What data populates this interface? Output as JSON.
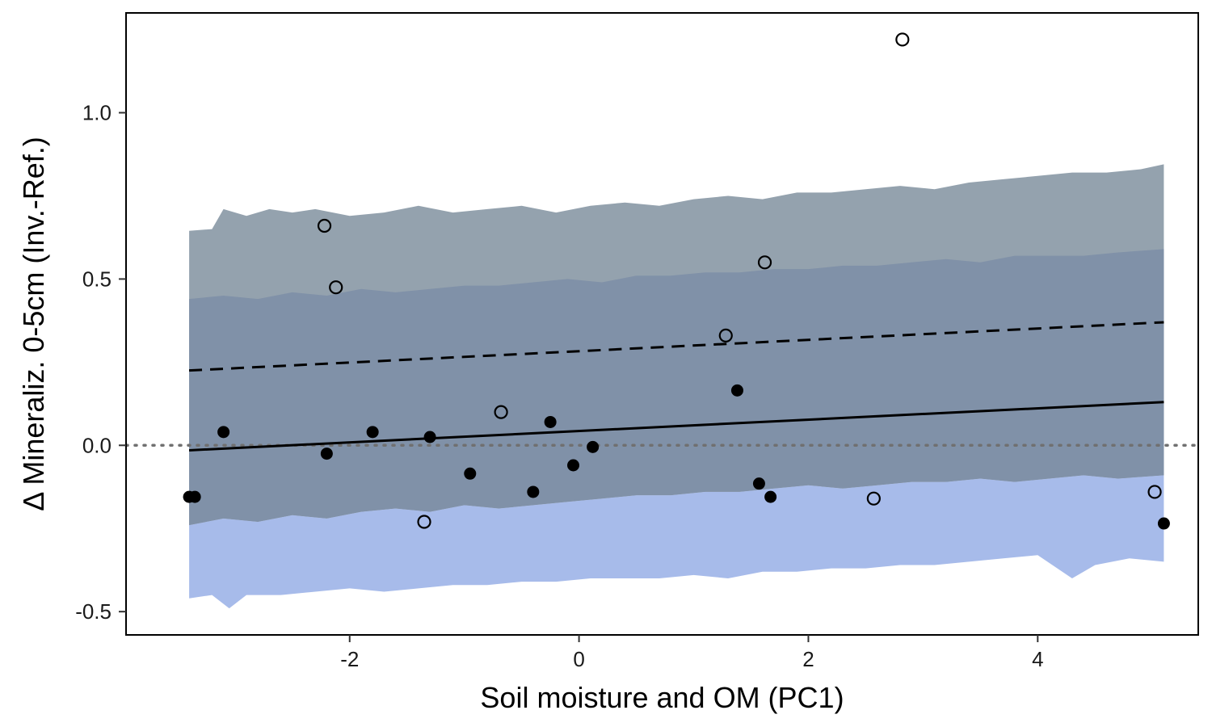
{
  "chart_data": {
    "type": "scatter",
    "title": "",
    "xlabel": "Soil moisture and OM (PC1)",
    "ylabel": "Δ Mineraliz. 0-5cm (Inv.-Ref.)",
    "xlim": [
      -3.95,
      5.4
    ],
    "ylim": [
      -0.57,
      1.3
    ],
    "x_ticks": [
      -2,
      0,
      2,
      4
    ],
    "x_tick_labels": [
      "-2",
      "0",
      "2",
      "4"
    ],
    "y_ticks": [
      -0.5,
      0.0,
      0.5,
      1.0
    ],
    "y_tick_labels": [
      "-0.5",
      "0.0",
      "0.5",
      "1.0"
    ],
    "grid": false,
    "legend": "none",
    "colors": {
      "band_outer": "#94a2ae",
      "band_blue": "#a7bbea",
      "band_inner": "#8091a8",
      "points": "#000000",
      "zero_line": "#707070"
    },
    "bands": {
      "outer_upper": [
        [
          -3.4,
          0.645
        ],
        [
          -3.2,
          0.65
        ],
        [
          -3.1,
          0.71
        ],
        [
          -2.9,
          0.69
        ],
        [
          -2.7,
          0.71
        ],
        [
          -2.5,
          0.7
        ],
        [
          -2.3,
          0.71
        ],
        [
          -2.0,
          0.69
        ],
        [
          -1.7,
          0.7
        ],
        [
          -1.4,
          0.72
        ],
        [
          -1.1,
          0.7
        ],
        [
          -0.8,
          0.71
        ],
        [
          -0.5,
          0.72
        ],
        [
          -0.2,
          0.7
        ],
        [
          0.1,
          0.72
        ],
        [
          0.4,
          0.73
        ],
        [
          0.7,
          0.72
        ],
        [
          1.0,
          0.74
        ],
        [
          1.3,
          0.75
        ],
        [
          1.6,
          0.74
        ],
        [
          1.9,
          0.76
        ],
        [
          2.2,
          0.76
        ],
        [
          2.5,
          0.77
        ],
        [
          2.8,
          0.78
        ],
        [
          3.1,
          0.77
        ],
        [
          3.4,
          0.79
        ],
        [
          3.7,
          0.8
        ],
        [
          4.0,
          0.81
        ],
        [
          4.3,
          0.82
        ],
        [
          4.6,
          0.82
        ],
        [
          4.9,
          0.83
        ],
        [
          5.1,
          0.845
        ]
      ],
      "inner_upper": [
        [
          -3.4,
          0.44
        ],
        [
          -3.1,
          0.45
        ],
        [
          -2.8,
          0.44
        ],
        [
          -2.5,
          0.46
        ],
        [
          -2.2,
          0.45
        ],
        [
          -1.9,
          0.47
        ],
        [
          -1.6,
          0.46
        ],
        [
          -1.3,
          0.47
        ],
        [
          -1.0,
          0.48
        ],
        [
          -0.7,
          0.48
        ],
        [
          -0.4,
          0.49
        ],
        [
          -0.1,
          0.5
        ],
        [
          0.2,
          0.49
        ],
        [
          0.5,
          0.51
        ],
        [
          0.8,
          0.51
        ],
        [
          1.1,
          0.52
        ],
        [
          1.4,
          0.52
        ],
        [
          1.7,
          0.53
        ],
        [
          2.0,
          0.53
        ],
        [
          2.3,
          0.54
        ],
        [
          2.6,
          0.54
        ],
        [
          2.9,
          0.55
        ],
        [
          3.2,
          0.56
        ],
        [
          3.5,
          0.55
        ],
        [
          3.8,
          0.57
        ],
        [
          4.1,
          0.57
        ],
        [
          4.4,
          0.57
        ],
        [
          4.7,
          0.58
        ],
        [
          5.1,
          0.59
        ]
      ],
      "inner_lower": [
        [
          -3.4,
          -0.24
        ],
        [
          -3.1,
          -0.22
        ],
        [
          -2.8,
          -0.23
        ],
        [
          -2.5,
          -0.21
        ],
        [
          -2.2,
          -0.22
        ],
        [
          -1.9,
          -0.2
        ],
        [
          -1.6,
          -0.19
        ],
        [
          -1.3,
          -0.2
        ],
        [
          -1.0,
          -0.18
        ],
        [
          -0.7,
          -0.19
        ],
        [
          -0.4,
          -0.18
        ],
        [
          -0.1,
          -0.17
        ],
        [
          0.2,
          -0.16
        ],
        [
          0.5,
          -0.15
        ],
        [
          0.8,
          -0.15
        ],
        [
          1.1,
          -0.14
        ],
        [
          1.4,
          -0.14
        ],
        [
          1.7,
          -0.13
        ],
        [
          2.0,
          -0.12
        ],
        [
          2.3,
          -0.13
        ],
        [
          2.6,
          -0.12
        ],
        [
          2.9,
          -0.11
        ],
        [
          3.2,
          -0.11
        ],
        [
          3.5,
          -0.1
        ],
        [
          3.8,
          -0.11
        ],
        [
          4.1,
          -0.1
        ],
        [
          4.4,
          -0.09
        ],
        [
          4.7,
          -0.1
        ],
        [
          5.1,
          -0.09
        ]
      ],
      "outer_lower": [
        [
          -3.4,
          -0.46
        ],
        [
          -3.2,
          -0.45
        ],
        [
          -3.05,
          -0.49
        ],
        [
          -2.9,
          -0.45
        ],
        [
          -2.6,
          -0.45
        ],
        [
          -2.3,
          -0.44
        ],
        [
          -2.0,
          -0.43
        ],
        [
          -1.7,
          -0.44
        ],
        [
          -1.4,
          -0.43
        ],
        [
          -1.1,
          -0.42
        ],
        [
          -0.8,
          -0.42
        ],
        [
          -0.5,
          -0.41
        ],
        [
          -0.2,
          -0.41
        ],
        [
          0.1,
          -0.4
        ],
        [
          0.4,
          -0.4
        ],
        [
          0.7,
          -0.4
        ],
        [
          1.0,
          -0.39
        ],
        [
          1.3,
          -0.4
        ],
        [
          1.6,
          -0.38
        ],
        [
          1.9,
          -0.38
        ],
        [
          2.2,
          -0.37
        ],
        [
          2.5,
          -0.37
        ],
        [
          2.8,
          -0.36
        ],
        [
          3.1,
          -0.36
        ],
        [
          3.4,
          -0.35
        ],
        [
          3.7,
          -0.34
        ],
        [
          4.0,
          -0.33
        ],
        [
          4.3,
          -0.4
        ],
        [
          4.5,
          -0.36
        ],
        [
          4.8,
          -0.34
        ],
        [
          5.1,
          -0.35
        ]
      ]
    },
    "series": [
      {
        "style": "filled",
        "points": [
          [
            -3.4,
            -0.155
          ],
          [
            -3.35,
            -0.155
          ],
          [
            -3.1,
            0.04
          ],
          [
            -2.2,
            -0.025
          ],
          [
            -1.8,
            0.04
          ],
          [
            -1.3,
            0.025
          ],
          [
            -0.95,
            -0.085
          ],
          [
            -0.4,
            -0.14
          ],
          [
            -0.25,
            0.07
          ],
          [
            -0.05,
            -0.06
          ],
          [
            0.12,
            -0.005
          ],
          [
            1.38,
            0.165
          ],
          [
            1.57,
            -0.115
          ],
          [
            1.67,
            -0.155
          ],
          [
            5.1,
            -0.235
          ]
        ]
      },
      {
        "style": "open",
        "points": [
          [
            -2.22,
            0.66
          ],
          [
            -2.12,
            0.475
          ],
          [
            -0.68,
            0.1
          ],
          [
            -1.35,
            -0.23
          ],
          [
            1.28,
            0.33
          ],
          [
            1.62,
            0.55
          ],
          [
            2.57,
            -0.16
          ],
          [
            2.82,
            1.22
          ],
          [
            5.02,
            -0.14
          ]
        ]
      }
    ],
    "fit_lines": [
      {
        "style": "solid",
        "x": [
          -3.4,
          5.1
        ],
        "y": [
          -0.015,
          0.13
        ]
      },
      {
        "style": "dashed",
        "x": [
          -3.4,
          5.1
        ],
        "y": [
          0.225,
          0.37
        ]
      }
    ],
    "reference_line": {
      "y": 0.0,
      "style": "dotted"
    }
  }
}
